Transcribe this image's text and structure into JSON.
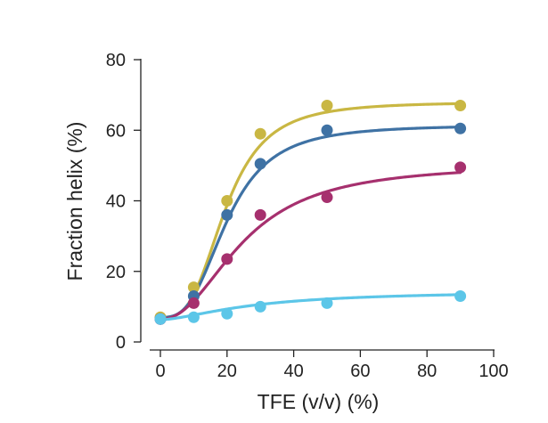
{
  "chart_data": {
    "type": "scatter",
    "title": "",
    "xlabel": "TFE (v/v) (%)",
    "ylabel": "Fraction helix (%)",
    "xlim": [
      0,
      100
    ],
    "ylim": [
      0,
      80
    ],
    "x_ticks": [
      "0",
      "20",
      "40",
      "60",
      "80",
      "100"
    ],
    "y_ticks": [
      "0",
      "20",
      "40",
      "60",
      "80"
    ],
    "legend": "none",
    "grid": false,
    "series": [
      {
        "name": "yellow",
        "color": "#c9b743",
        "x": [
          0,
          10,
          20,
          30,
          50,
          90
        ],
        "y": [
          7,
          15.5,
          40,
          59,
          67,
          67
        ],
        "fit": {
          "min": 7,
          "max": 68,
          "x50": 19.5,
          "hill": 3.2
        }
      },
      {
        "name": "dark blue",
        "color": "#3f72a4",
        "x": [
          0,
          10,
          20,
          30,
          50,
          90
        ],
        "y": [
          6.5,
          13,
          36,
          50.5,
          60,
          60.5
        ],
        "fit": {
          "min": 7,
          "max": 61.5,
          "x50": 20,
          "hill": 3.0
        }
      },
      {
        "name": "magenta",
        "color": "#a6306e",
        "x": [
          0,
          10,
          20,
          30,
          50,
          90
        ],
        "y": [
          6.5,
          11,
          23.5,
          36,
          41,
          49.5
        ],
        "fit": {
          "min": 6.5,
          "max": 50.5,
          "x50": 25,
          "hill": 2.2
        }
      },
      {
        "name": "light blue",
        "color": "#5cc6e8",
        "x": [
          0,
          10,
          20,
          30,
          50,
          90
        ],
        "y": [
          6.5,
          7,
          8,
          10,
          11,
          13
        ],
        "fit": {
          "min": 6.3,
          "max": 14.5,
          "x50": 28,
          "hill": 1.6
        }
      }
    ]
  }
}
